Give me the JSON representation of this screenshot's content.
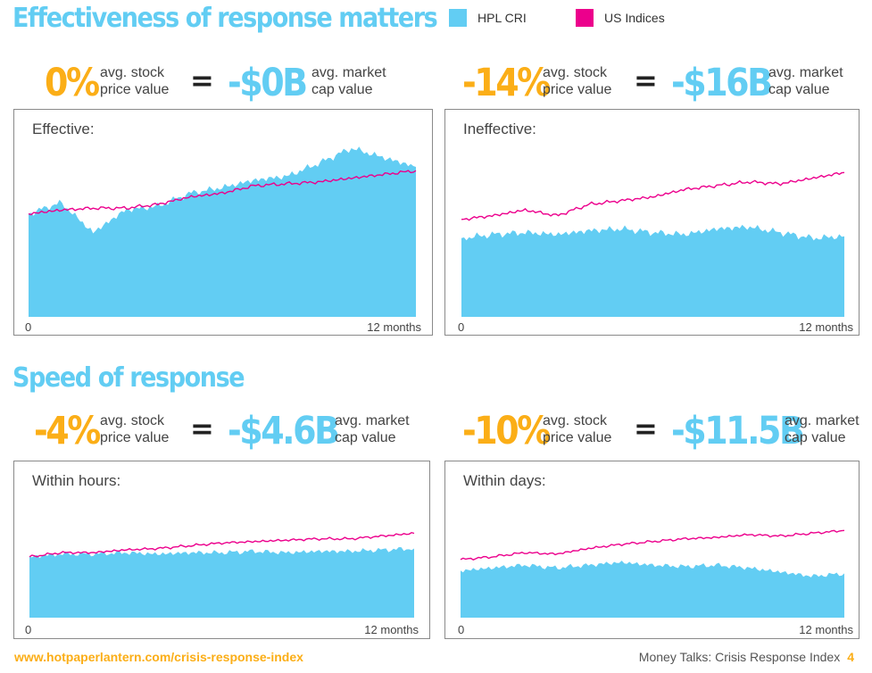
{
  "sections": [
    {
      "title": "Effectiveness of response matters"
    },
    {
      "title": "Speed of response"
    }
  ],
  "legend": [
    {
      "label": "HPL CRI",
      "color": "#62cdf3"
    },
    {
      "label": "US Indices",
      "color": "#ec008c"
    }
  ],
  "stat_labels": {
    "stock_line1": "avg. stock",
    "stock_line2": "price value",
    "cap_line1": "avg. market",
    "cap_line2": "cap value",
    "equals": "="
  },
  "stats": [
    {
      "stock_change": "0%",
      "market_cap": "-$0B"
    },
    {
      "stock_change": "-14%",
      "market_cap": "-$16B"
    },
    {
      "stock_change": "-4%",
      "market_cap": "-$4.6B"
    },
    {
      "stock_change": "-10%",
      "market_cap": "-$11.5B"
    }
  ],
  "chart_data": [
    {
      "type": "area",
      "title": "Effective:",
      "x_start_label": "0",
      "x_end_label": "12 months",
      "x": [
        0,
        1,
        2,
        3,
        4,
        5,
        6,
        7,
        8,
        9,
        10,
        11,
        12
      ],
      "ylim": [
        0,
        100
      ],
      "series": [
        {
          "name": "HPL CRI",
          "type": "area",
          "values": [
            55,
            61,
            45,
            57,
            59,
            66,
            69,
            73,
            75,
            82,
            90,
            85,
            80
          ]
        },
        {
          "name": "US Indices",
          "type": "line",
          "values": [
            55,
            57,
            58,
            58,
            60,
            64,
            66,
            70,
            71,
            72,
            74,
            76,
            78
          ]
        }
      ]
    },
    {
      "type": "area",
      "title": "Ineffective:",
      "x_start_label": "0",
      "x_end_label": "12 months",
      "x": [
        0,
        1,
        2,
        3,
        4,
        5,
        6,
        7,
        8,
        9,
        10,
        11,
        12
      ],
      "ylim": [
        0,
        100
      ],
      "series": [
        {
          "name": "HPL CRI",
          "type": "area",
          "values": [
            42,
            44,
            45,
            44,
            46,
            47,
            45,
            44,
            47,
            48,
            45,
            42,
            43
          ]
        },
        {
          "name": "US Indices",
          "type": "line",
          "values": [
            52,
            54,
            57,
            54,
            60,
            62,
            64,
            68,
            70,
            72,
            71,
            74,
            77
          ]
        }
      ]
    },
    {
      "type": "area",
      "title": "Within hours:",
      "x_start_label": "0",
      "x_end_label": "12 months",
      "x": [
        0,
        1,
        2,
        3,
        4,
        5,
        6,
        7,
        8,
        9,
        10,
        11,
        12
      ],
      "ylim": [
        0,
        100
      ],
      "series": [
        {
          "name": "HPL CRI",
          "type": "area",
          "values": [
            44,
            46,
            46,
            47,
            46,
            47,
            47,
            48,
            47,
            48,
            48,
            49,
            50
          ]
        },
        {
          "name": "US Indices",
          "type": "line",
          "values": [
            44,
            47,
            47,
            49,
            50,
            52,
            54,
            55,
            56,
            57,
            57,
            59,
            61
          ]
        }
      ]
    },
    {
      "type": "area",
      "title": "Within days:",
      "x_start_label": "0",
      "x_end_label": "12 months",
      "x": [
        0,
        1,
        2,
        3,
        4,
        5,
        6,
        7,
        8,
        9,
        10,
        11,
        12
      ],
      "ylim": [
        0,
        100
      ],
      "series": [
        {
          "name": "HPL CRI",
          "type": "area",
          "values": [
            34,
            36,
            38,
            36,
            38,
            40,
            38,
            37,
            38,
            36,
            33,
            30,
            32
          ]
        },
        {
          "name": "US Indices",
          "type": "line",
          "values": [
            42,
            44,
            47,
            46,
            50,
            53,
            55,
            57,
            58,
            60,
            59,
            61,
            63
          ]
        }
      ]
    }
  ],
  "footer": {
    "url": "www.hotpaperlantern.com/crisis-response-index",
    "title": "Money Talks: Crisis Response Index",
    "page": "4"
  }
}
